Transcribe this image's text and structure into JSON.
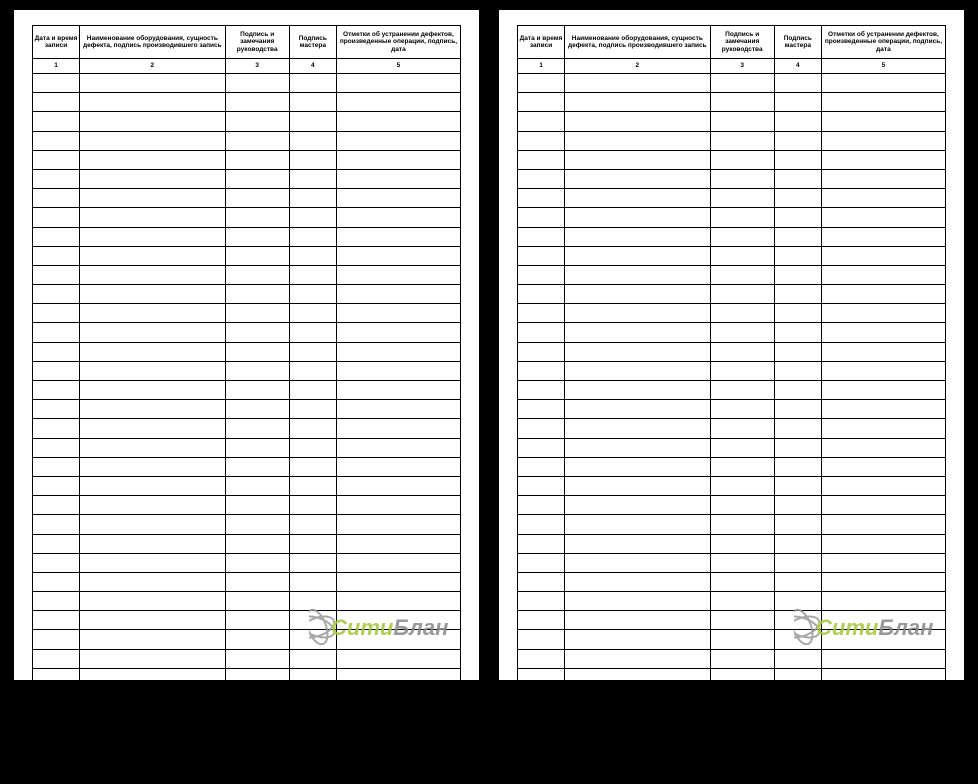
{
  "table": {
    "columns": [
      {
        "header": "Дата и время записи",
        "num": "1",
        "width": "11%"
      },
      {
        "header": "Наименование оборудования, сущность дефекта, подпись производившего запись",
        "num": "2",
        "width": "34%"
      },
      {
        "header": "Подпись и замечания руководства",
        "num": "3",
        "width": "15%"
      },
      {
        "header": "Подпись мастера",
        "num": "4",
        "width": "11%"
      },
      {
        "header": "Отметки об устранении дефектов, произведенные операции, подпись, дата",
        "num": "5",
        "width": "29%"
      }
    ],
    "empty_rows": 37,
    "border_color": "#000000",
    "background_color": "#ffffff",
    "header_fontsize": 6.5,
    "row_height": 14.2
  },
  "watermark": {
    "text1": "Сити",
    "text2": "Бланк",
    "color_green": "#a4c639",
    "color_gray": "#888888",
    "fontsize": 18
  },
  "pages": 2
}
